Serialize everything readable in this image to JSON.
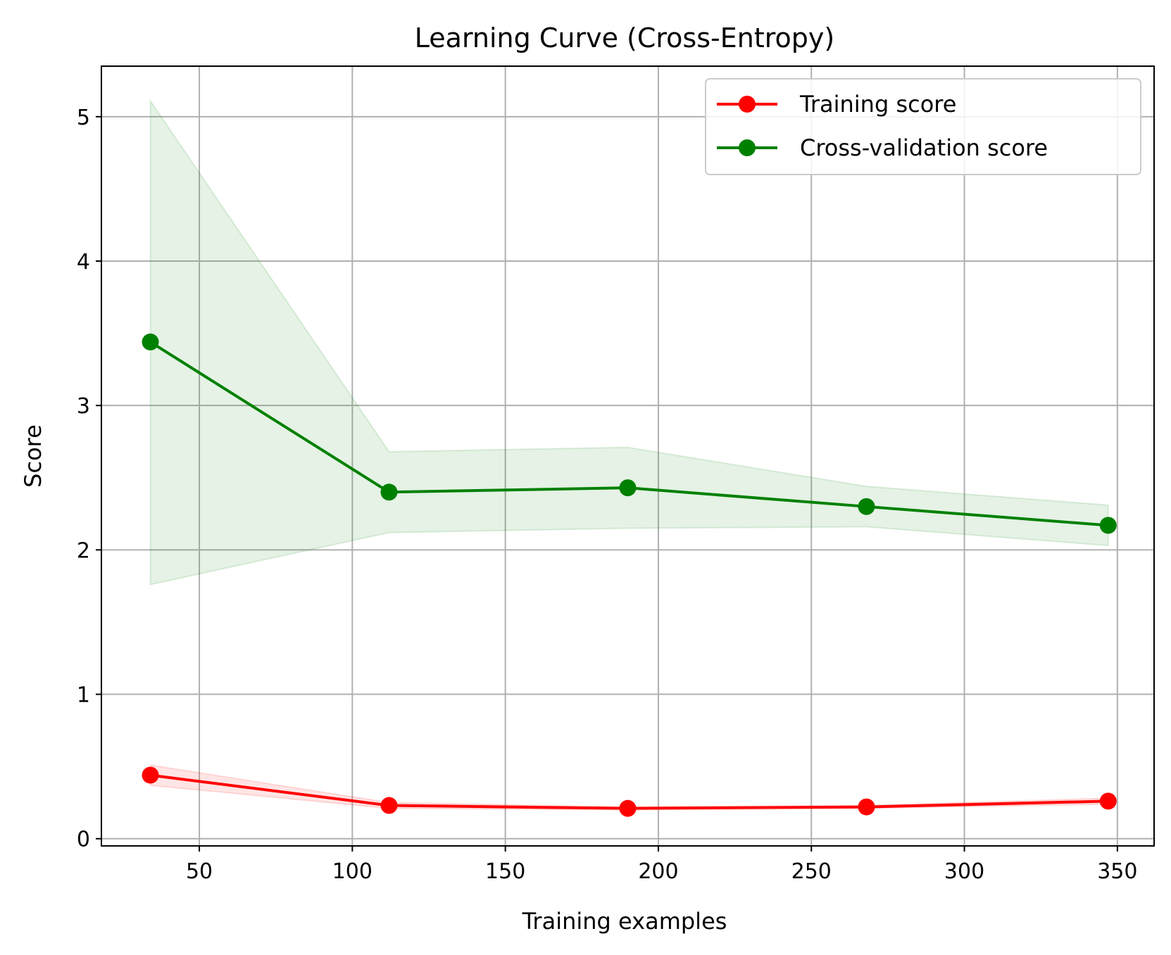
{
  "chart_data": {
    "type": "line",
    "title": "Learning Curve (Cross-Entropy)",
    "xlabel": "Training examples",
    "ylabel": "Score",
    "xlim": [
      18,
      362
    ],
    "ylim": [
      -0.05,
      5.35
    ],
    "xticks": [
      50,
      100,
      150,
      200,
      250,
      300,
      350
    ],
    "yticks": [
      0,
      1,
      2,
      3,
      4,
      5
    ],
    "grid": true,
    "legend_position": "top-right",
    "x": [
      34,
      112,
      190,
      268,
      347
    ],
    "series": [
      {
        "name": "Training score",
        "color": "#ff0000",
        "values": [
          0.44,
          0.23,
          0.21,
          0.22,
          0.26
        ],
        "band_upper": [
          0.51,
          0.25,
          0.22,
          0.23,
          0.28
        ],
        "band_lower": [
          0.37,
          0.21,
          0.2,
          0.21,
          0.24
        ]
      },
      {
        "name": "Cross-validation score",
        "color": "#008000",
        "values": [
          3.44,
          2.4,
          2.43,
          2.3,
          2.17
        ],
        "band_upper": [
          5.11,
          2.68,
          2.71,
          2.44,
          2.31
        ],
        "band_lower": [
          1.76,
          2.12,
          2.15,
          2.16,
          2.03
        ]
      }
    ]
  }
}
